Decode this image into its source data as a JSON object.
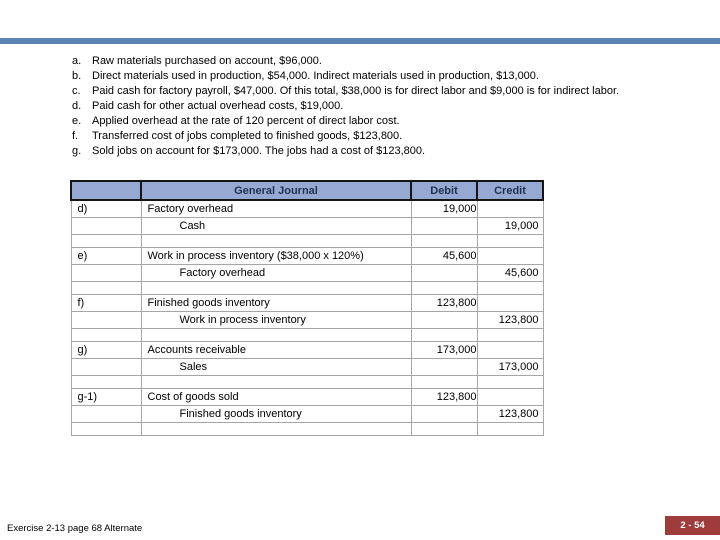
{
  "slide": {
    "accent_bar_color": "#5B83B3",
    "items": [
      {
        "label": "a.",
        "text": "Raw materials purchased on account, $96,000."
      },
      {
        "label": "b.",
        "text": "Direct materials used in production, $54,000. Indirect materials used in production, $13,000."
      },
      {
        "label": "c.",
        "text": "Paid cash for factory payroll, $47,000. Of this total, $38,000 is for direct labor and $9,000 is for indirect labor."
      },
      {
        "label": "d.",
        "text": "Paid cash for other actual overhead costs, $19,000."
      },
      {
        "label": "e.",
        "text": "Applied overhead at the rate of 120 percent of direct labor cost."
      },
      {
        "label": "f.",
        "text": "Transferred cost of jobs completed to finished goods, $123,800."
      },
      {
        "label": "g.",
        "text": "Sold jobs on account for $173,000. The jobs had a cost of $123,800."
      }
    ]
  },
  "journal": {
    "colors": {
      "header_fill": "#95A9D2",
      "header_text": "#1F3252",
      "grid": "#A6A6A6"
    },
    "headers": {
      "entry": "",
      "title": "General Journal",
      "debit": "Debit",
      "credit": "Credit"
    },
    "rows": [
      {
        "label": "d)",
        "account": "Factory overhead",
        "debit": "19,000",
        "credit": ""
      },
      {
        "label": "",
        "account": "Cash",
        "debit": "",
        "credit": "19,000"
      },
      {
        "label": "",
        "account": "",
        "debit": "",
        "credit": ""
      },
      {
        "label": "e)",
        "account": "Work in process inventory ($38,000 x 120%)",
        "debit": "45,600",
        "credit": ""
      },
      {
        "label": "",
        "account": "Factory overhead",
        "debit": "",
        "credit": "45,600"
      },
      {
        "label": "",
        "account": "",
        "debit": "",
        "credit": ""
      },
      {
        "label": "f)",
        "account": "Finished goods inventory",
        "debit": "123,800",
        "credit": ""
      },
      {
        "label": "",
        "account": "Work in process inventory",
        "debit": "",
        "credit": "123,800"
      },
      {
        "label": "",
        "account": "",
        "debit": "",
        "credit": ""
      },
      {
        "label": "g)",
        "account": "Accounts receivable",
        "debit": "173,000",
        "credit": ""
      },
      {
        "label": "",
        "account": "Sales",
        "debit": "",
        "credit": "173,000"
      },
      {
        "label": "",
        "account": "",
        "debit": "",
        "credit": ""
      },
      {
        "label": "g-1)",
        "account": "Cost of goods sold",
        "debit": "123,800",
        "credit": ""
      },
      {
        "label": "",
        "account": "Finished goods inventory",
        "debit": "",
        "credit": "123,800"
      },
      {
        "label": "",
        "account": "",
        "debit": "",
        "credit": ""
      }
    ]
  },
  "footer": {
    "exercise": "Exercise 2-13 page 68 Alternate",
    "page": "2 - 54",
    "page_badge_color": "#9E3C3C"
  }
}
